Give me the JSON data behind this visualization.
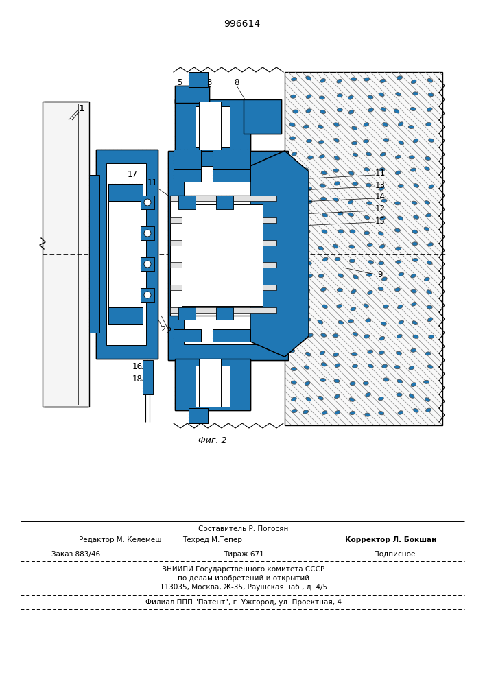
{
  "patent_number": "996614",
  "fig_label": "Фиг. 2",
  "bg_color": "#ffffff",
  "footer": {
    "sostavitel": "Составитель Р. Погосян",
    "redaktor": "Редактор М. Келемеш",
    "tehred": "Техред М.Тепер",
    "korrektor": "Корректор Л. Бокшан",
    "zakaz": "Заказ 883/46",
    "tirazh": "Тираж 671",
    "podpisnoe": "Подписное",
    "vniipI": "ВНИИПИ Государственного комитета СССР",
    "po_delam": "по делам изобретений и открытий",
    "address": "113035, Москва, Ж-35, Раушская наб., д. 4/5",
    "filial": "Филиал ППП \"Патент\", г. Ужгород, ул. Проектная, 4"
  }
}
